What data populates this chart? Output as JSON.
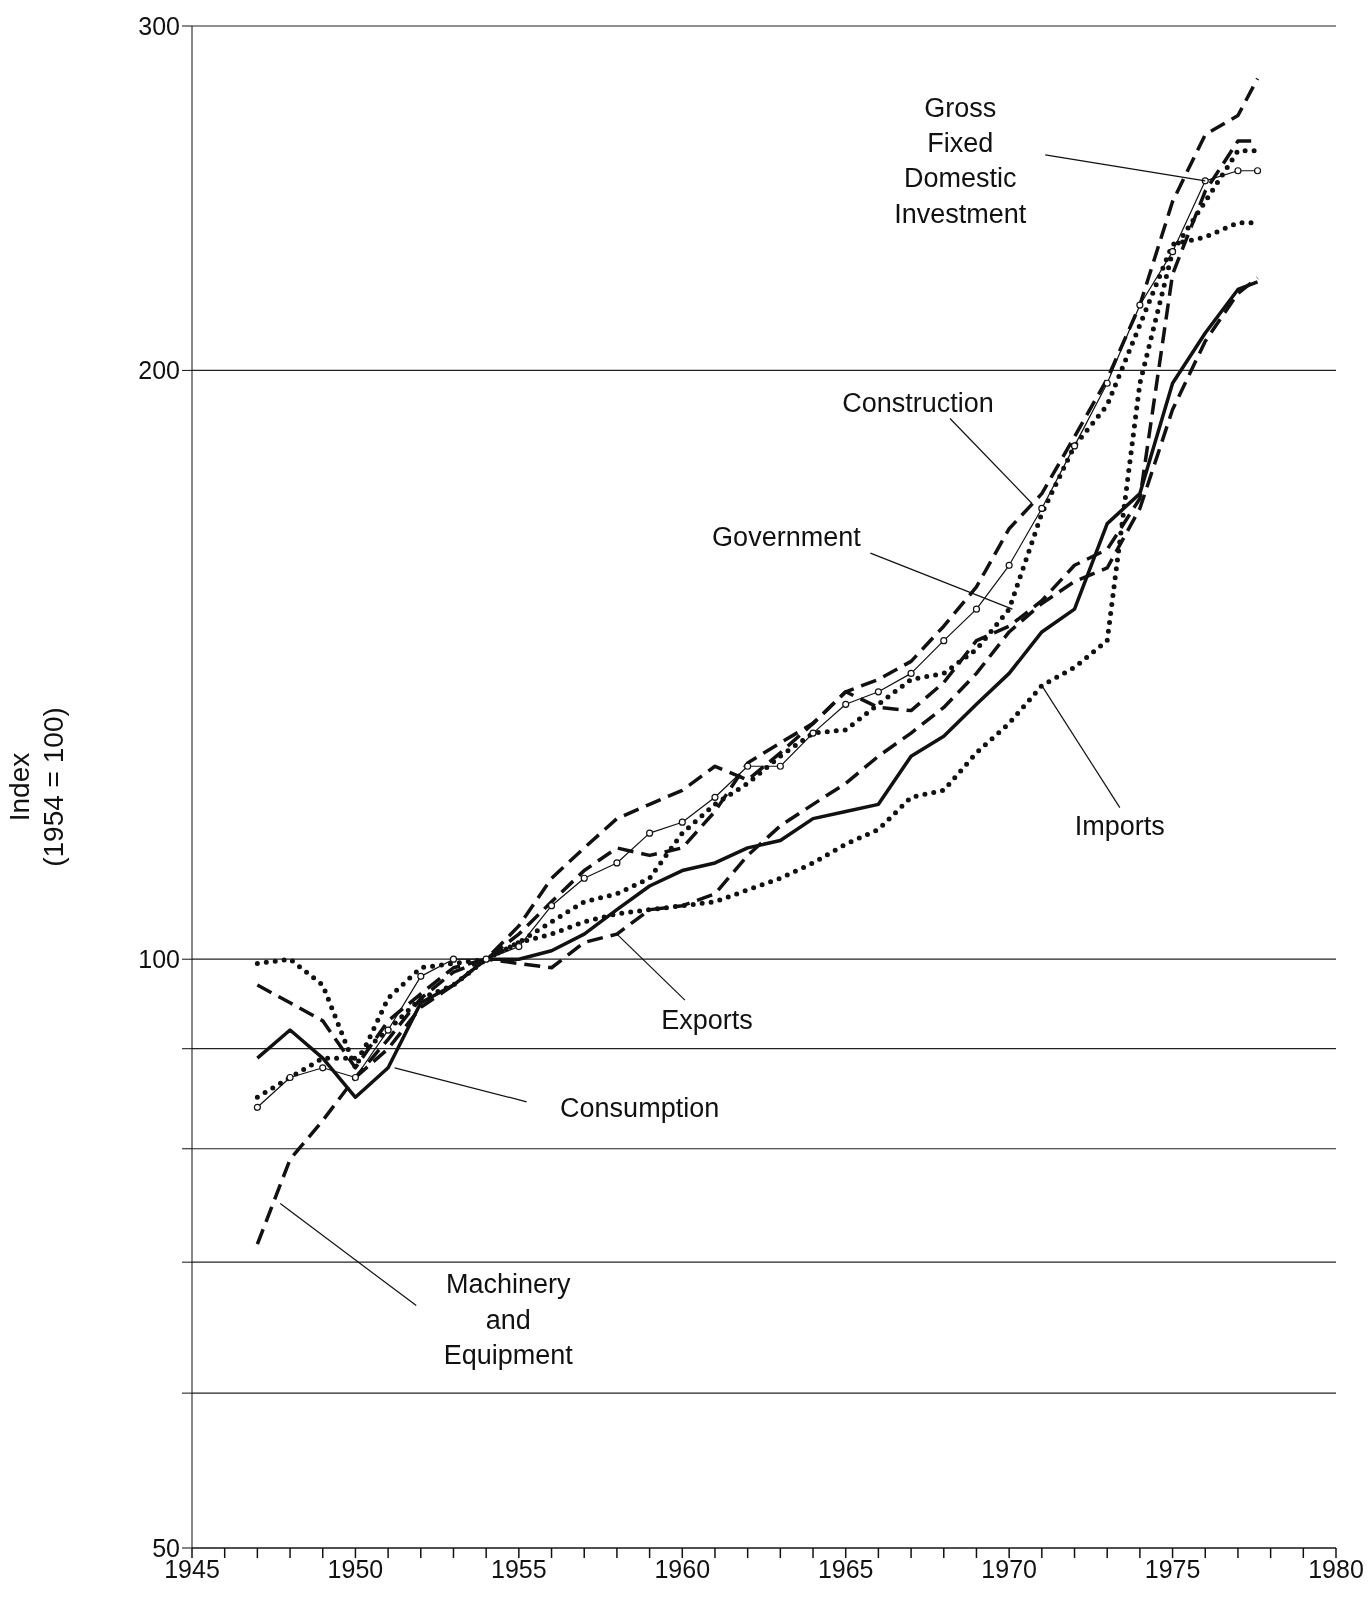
{
  "chart_data": {
    "type": "line",
    "ylabel": "Index\n(1954 = 100)",
    "x": [
      1947,
      1948,
      1949,
      1950,
      1951,
      1952,
      1953,
      1954,
      1955,
      1956,
      1957,
      1958,
      1959,
      1960,
      1961,
      1962,
      1963,
      1964,
      1965,
      1966,
      1967,
      1968,
      1969,
      1970,
      1971,
      1972,
      1973,
      1974,
      1975,
      1976,
      1977,
      1977.6
    ],
    "series": [
      {
        "color": "#111111",
        "line_style": "solid",
        "values": [
          89,
          92,
          89,
          85,
          88,
          95,
          97,
          100,
          100,
          101,
          103,
          106,
          109,
          111,
          112,
          114,
          115,
          118,
          119,
          120,
          127,
          130,
          135,
          140,
          147,
          151,
          167,
          173,
          197,
          209,
          220,
          222
        ]
      },
      {
        "color": "#111111",
        "marker": "circle",
        "values": [
          84,
          87,
          88,
          87,
          92,
          98,
          100,
          100,
          101.5,
          106.5,
          110,
          112,
          116,
          117.5,
          121,
          125.5,
          125.5,
          130.5,
          135,
          137,
          140,
          145.5,
          151,
          159,
          170,
          183,
          197,
          216,
          230,
          250,
          253,
          253
        ]
      },
      {
        "color": "#111111",
        "line_style": "dotted",
        "values": [
          85,
          87,
          89,
          89,
          92,
          95.5,
          97,
          100,
          102,
          104.5,
          107,
          108,
          110,
          116,
          120,
          123,
          127,
          130.5,
          131,
          135,
          139,
          140,
          144,
          151,
          169,
          183,
          192,
          211,
          232,
          234,
          238,
          238
        ]
      },
      {
        "color": "#111111",
        "line_style": "dashed",
        "values": [
          97,
          95,
          93,
          88,
          93,
          96,
          99,
          100,
          103,
          107,
          111,
          114,
          113,
          114,
          119,
          126,
          129,
          132,
          137,
          139,
          142,
          148,
          155,
          166,
          173,
          185,
          198,
          216,
          244,
          264,
          270,
          282
        ]
      },
      {
        "color": "#111111",
        "line_style": "dashed",
        "values": [
          null,
          null,
          null,
          87,
          90,
          94.5,
          97,
          100,
          99.5,
          99,
          102,
          103,
          106,
          106.5,
          108,
          113,
          117,
          120,
          123,
          127,
          130.5,
          134.5,
          140,
          147,
          152,
          156,
          158.5,
          170,
          191,
          207,
          219,
          223
        ]
      },
      {
        "color": "#111111",
        "line_style": "dotted",
        "values": [
          99.5,
          100,
          97,
          88,
          95.5,
          99,
          99.5,
          100,
          102,
          103,
          104.5,
          105.5,
          106,
          106.5,
          107,
          108.5,
          110,
          112,
          114.5,
          116.5,
          121,
          122,
          127.5,
          132,
          138,
          141,
          145.5,
          197,
          230,
          244,
          259,
          259
        ]
      },
      {
        "color": "#111111",
        "line_style": "dashed",
        "values": [
          71.5,
          79,
          82.7,
          87,
          91,
          95.5,
          98.5,
          100,
          104,
          110,
          114,
          118,
          120,
          122,
          125.5,
          123.5,
          127.5,
          132,
          137,
          134.5,
          134,
          138.5,
          145.5,
          148,
          152.5,
          159,
          162,
          172,
          224,
          247,
          262,
          262
        ]
      }
    ],
    "xlim": [
      1945,
      1980
    ],
    "xticks": [
      1945,
      {
        "value": 1946,
        "label": null
      },
      {
        "value": 1947,
        "label": null
      },
      {
        "value": 1948,
        "label": null
      },
      {
        "value": 1949,
        "label": null
      },
      1950,
      {
        "value": 1951,
        "label": null
      },
      {
        "value": 1952,
        "label": null
      },
      {
        "value": 1953,
        "label": null
      },
      {
        "value": 1954,
        "label": null
      },
      1955,
      {
        "value": 1956,
        "label": null
      },
      {
        "value": 1957,
        "label": null
      },
      {
        "value": 1958,
        "label": null
      },
      {
        "value": 1959,
        "label": null
      },
      1960,
      {
        "value": 1961,
        "label": null
      },
      {
        "value": 1962,
        "label": null
      },
      {
        "value": 1963,
        "label": null
      },
      {
        "value": 1964,
        "label": null
      },
      1965,
      {
        "value": 1966,
        "label": null
      },
      {
        "value": 1967,
        "label": null
      },
      {
        "value": 1968,
        "label": null
      },
      {
        "value": 1969,
        "label": null
      },
      1970,
      {
        "value": 1971,
        "label": null
      },
      {
        "value": 1972,
        "label": null
      },
      {
        "value": 1973,
        "label": null
      },
      {
        "value": 1974,
        "label": null
      },
      1975,
      {
        "value": 1976,
        "label": null
      },
      {
        "value": 1977,
        "label": null
      },
      {
        "value": 1978,
        "label": null
      },
      {
        "value": 1979,
        "label": null
      },
      1980
    ],
    "ylim": [
      50,
      300
    ],
    "yticks": [
      50,
      {
        "value": 60,
        "label": null
      },
      {
        "value": 70,
        "label": null
      },
      {
        "value": 80,
        "label": null
      },
      {
        "value": 90,
        "label": null
      },
      100,
      200,
      300
    ],
    "log": "y",
    "grid": "y",
    "annotations": [
      {
        "text": "Gross\nFixed\nDomestic\nInvestment",
        "x": 1976,
        "y": 250
      },
      {
        "text": "Construction",
        "x": 1970.7,
        "y": 171
      },
      {
        "text": "Government",
        "x": 1970.1,
        "y": 151
      },
      {
        "text": "Imports",
        "x": 1971,
        "y": 138
      },
      {
        "text": "Exports",
        "x": 1958,
        "y": 103
      },
      {
        "text": "Consumption",
        "x": 1951.2,
        "y": 88
      },
      {
        "text": "Machinery\nand\nEquipment",
        "x": 1947.7,
        "y": 75
      }
    ]
  }
}
